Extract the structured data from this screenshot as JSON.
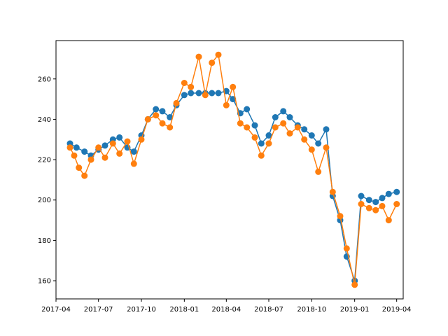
{
  "chart_data": {
    "type": "scatter",
    "connected": true,
    "grid": false,
    "legend": "none",
    "xlim": [
      "2017-04-01",
      "2019-04-15"
    ],
    "ylim": [
      151,
      279
    ],
    "x_ticks": [
      "2017-04",
      "2017-07",
      "2017-10",
      "2018-01",
      "2018-04",
      "2018-07",
      "2018-10",
      "2019-01",
      "2019-04"
    ],
    "y_ticks": [
      160,
      180,
      200,
      220,
      240,
      260
    ],
    "series": [
      {
        "color": "#1f77b4",
        "points": [
          [
            "2017-05-01",
            228
          ],
          [
            "2017-05-15",
            226
          ],
          [
            "2017-06-01",
            224
          ],
          [
            "2017-06-15",
            222
          ],
          [
            "2017-07-01",
            225
          ],
          [
            "2017-07-15",
            227
          ],
          [
            "2017-08-01",
            230
          ],
          [
            "2017-08-15",
            231
          ],
          [
            "2017-09-01",
            226
          ],
          [
            "2017-09-15",
            224
          ],
          [
            "2017-10-01",
            232
          ],
          [
            "2017-10-15",
            240
          ],
          [
            "2017-11-01",
            245
          ],
          [
            "2017-11-15",
            244
          ],
          [
            "2017-12-01",
            241
          ],
          [
            "2017-12-15",
            247
          ],
          [
            "2018-01-01",
            252
          ],
          [
            "2018-01-15",
            253
          ],
          [
            "2018-02-01",
            253
          ],
          [
            "2018-02-15",
            253
          ],
          [
            "2018-03-01",
            253
          ],
          [
            "2018-03-15",
            253
          ],
          [
            "2018-04-01",
            254
          ],
          [
            "2018-04-15",
            250
          ],
          [
            "2018-05-01",
            243
          ],
          [
            "2018-05-15",
            245
          ],
          [
            "2018-06-01",
            237
          ],
          [
            "2018-06-15",
            228
          ],
          [
            "2018-07-01",
            232
          ],
          [
            "2018-07-15",
            241
          ],
          [
            "2018-08-01",
            244
          ],
          [
            "2018-08-15",
            241
          ],
          [
            "2018-09-01",
            237
          ],
          [
            "2018-09-15",
            235
          ],
          [
            "2018-10-01",
            232
          ],
          [
            "2018-10-15",
            228
          ],
          [
            "2018-11-01",
            235
          ],
          [
            "2018-11-15",
            202
          ],
          [
            "2018-12-01",
            190
          ],
          [
            "2018-12-15",
            172
          ],
          [
            "2019-01-01",
            160
          ],
          [
            "2019-01-15",
            202
          ],
          [
            "2019-02-01",
            200
          ],
          [
            "2019-02-15",
            199
          ],
          [
            "2019-03-01",
            201
          ],
          [
            "2019-03-15",
            203
          ],
          [
            "2019-04-01",
            204
          ]
        ]
      },
      {
        "color": "#ff7f0e",
        "points": [
          [
            "2017-05-01",
            226
          ],
          [
            "2017-05-10",
            222
          ],
          [
            "2017-05-20",
            216
          ],
          [
            "2017-06-01",
            212
          ],
          [
            "2017-06-15",
            220
          ],
          [
            "2017-07-01",
            226
          ],
          [
            "2017-07-15",
            221
          ],
          [
            "2017-08-01",
            228
          ],
          [
            "2017-08-15",
            223
          ],
          [
            "2017-09-01",
            229
          ],
          [
            "2017-09-15",
            218
          ],
          [
            "2017-10-01",
            230
          ],
          [
            "2017-10-15",
            240
          ],
          [
            "2017-11-01",
            242
          ],
          [
            "2017-11-15",
            238
          ],
          [
            "2017-12-01",
            236
          ],
          [
            "2017-12-15",
            248
          ],
          [
            "2018-01-01",
            258
          ],
          [
            "2018-01-15",
            256
          ],
          [
            "2018-02-01",
            271
          ],
          [
            "2018-02-15",
            252
          ],
          [
            "2018-03-01",
            268
          ],
          [
            "2018-03-15",
            272
          ],
          [
            "2018-04-01",
            247
          ],
          [
            "2018-04-15",
            256
          ],
          [
            "2018-05-01",
            238
          ],
          [
            "2018-05-15",
            236
          ],
          [
            "2018-06-01",
            231
          ],
          [
            "2018-06-15",
            222
          ],
          [
            "2018-07-01",
            228
          ],
          [
            "2018-07-15",
            236
          ],
          [
            "2018-08-01",
            238
          ],
          [
            "2018-08-15",
            233
          ],
          [
            "2018-09-01",
            236
          ],
          [
            "2018-09-15",
            230
          ],
          [
            "2018-10-01",
            225
          ],
          [
            "2018-10-15",
            214
          ],
          [
            "2018-11-01",
            226
          ],
          [
            "2018-11-15",
            204
          ],
          [
            "2018-12-01",
            192
          ],
          [
            "2018-12-15",
            176
          ],
          [
            "2019-01-01",
            158
          ],
          [
            "2019-01-15",
            198
          ],
          [
            "2019-02-01",
            196
          ],
          [
            "2019-02-15",
            195
          ],
          [
            "2019-03-01",
            197
          ],
          [
            "2019-03-15",
            190
          ],
          [
            "2019-04-01",
            198
          ]
        ]
      }
    ]
  }
}
